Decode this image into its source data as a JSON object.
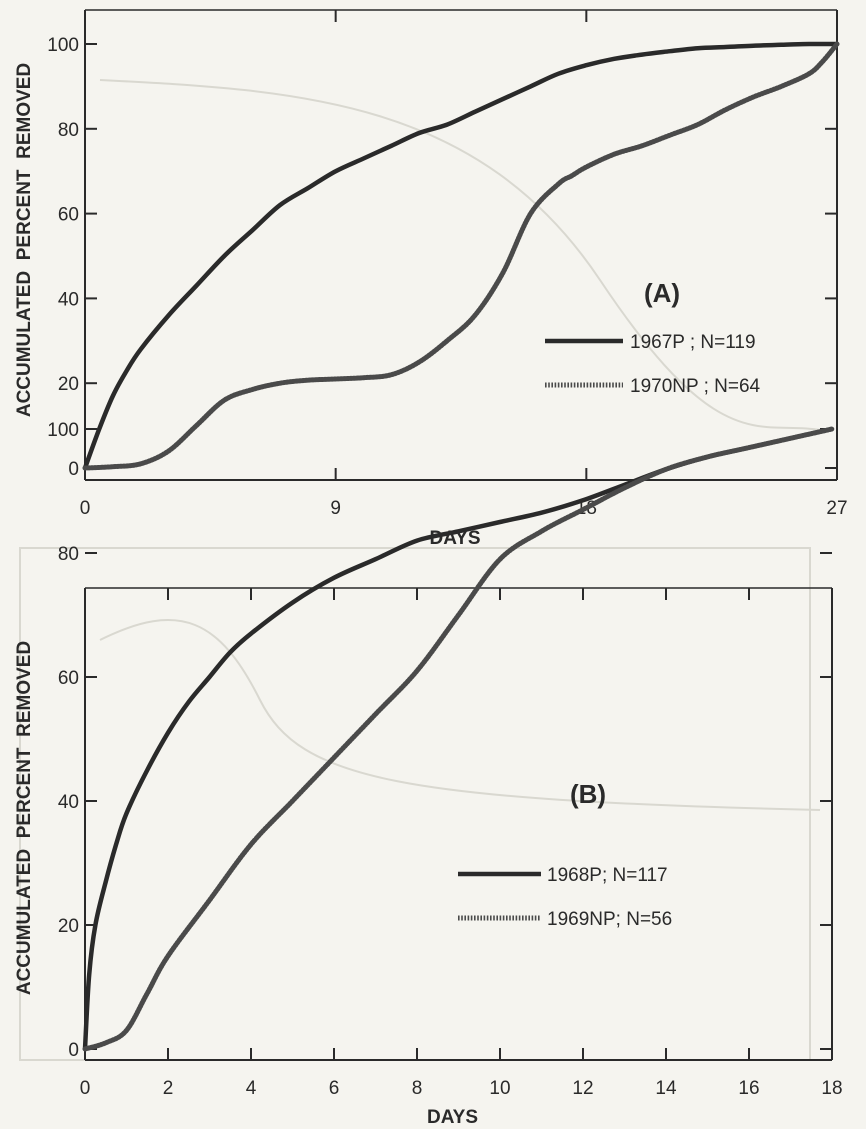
{
  "chart_data": [
    {
      "type": "line",
      "panel_label": "(A)",
      "xlabel": "DAYS",
      "ylabel": "ACCUMULATED  PERCENT  REMOVED",
      "xlim": [
        0,
        27
      ],
      "ylim": [
        0,
        100
      ],
      "x_ticks": [
        0,
        9,
        18,
        27
      ],
      "y_ticks": [
        0,
        20,
        40,
        60,
        80,
        100
      ],
      "legend_position": "center-right",
      "series": [
        {
          "name": "1967P ; N=119",
          "style": "solid",
          "x": [
            0,
            0.5,
            1,
            1.5,
            2,
            3,
            4,
            5,
            6,
            7,
            8,
            9,
            10,
            11,
            12,
            13,
            14,
            15,
            16,
            17,
            18,
            19,
            20,
            21,
            22,
            23,
            24,
            25,
            26,
            27
          ],
          "y": [
            0,
            9,
            17,
            23,
            28,
            36,
            43,
            50,
            56,
            62,
            66,
            70,
            73,
            76,
            79,
            81,
            84,
            87,
            90,
            93,
            95,
            96.5,
            97.5,
            98.3,
            99,
            99.3,
            99.6,
            99.8,
            100,
            100
          ]
        },
        {
          "name": "1970NP ; N=64",
          "style": "dotted",
          "x": [
            0,
            1,
            2,
            3,
            4,
            5,
            6,
            7,
            8,
            9,
            10,
            11,
            12,
            13,
            14,
            15,
            16,
            17,
            17.5,
            18,
            19,
            20,
            21,
            22,
            23,
            24,
            25,
            26,
            26.5,
            27
          ],
          "y": [
            0,
            0.3,
            1,
            4,
            10,
            16,
            18.5,
            20,
            20.7,
            21,
            21.3,
            22,
            25,
            30,
            36,
            46,
            60,
            67,
            69,
            71,
            74,
            76,
            78.5,
            81,
            84.5,
            87.5,
            90,
            93,
            96,
            100
          ]
        }
      ]
    },
    {
      "type": "line",
      "panel_label": "(B)",
      "xlabel": "DAYS",
      "ylabel": "ACCUMULATED  PERCENT  REMOVED",
      "xlim": [
        0,
        18
      ],
      "ylim": [
        0,
        100
      ],
      "x_ticks": [
        0,
        2,
        4,
        6,
        8,
        10,
        12,
        14,
        16,
        18
      ],
      "y_ticks": [
        0,
        20,
        40,
        60,
        80,
        100
      ],
      "legend_position": "center-right",
      "series": [
        {
          "name": "1968P; N=117",
          "style": "solid",
          "x": [
            0,
            0.1,
            0.25,
            0.5,
            0.75,
            1,
            1.5,
            2,
            2.5,
            3,
            3.5,
            4,
            5,
            6,
            7,
            8,
            9,
            10,
            11,
            12,
            13,
            14,
            15,
            16,
            17,
            18
          ],
          "y": [
            0,
            12,
            20,
            27,
            33,
            38,
            45,
            51,
            56,
            60,
            64,
            67,
            72,
            76,
            79,
            82,
            83.5,
            85,
            86.5,
            88.5,
            91,
            93.5,
            95.5,
            97,
            98.5,
            100
          ]
        },
        {
          "name": "1969NP; N=56",
          "style": "dotted",
          "x": [
            0,
            0.5,
            1,
            1.5,
            2,
            3,
            4,
            5,
            6,
            7,
            8,
            9,
            10,
            11,
            12,
            13,
            14,
            15,
            16,
            17,
            18
          ],
          "y": [
            0,
            1,
            3,
            9,
            15,
            24,
            33,
            40,
            47,
            54,
            61,
            70,
            79,
            83.5,
            87,
            90.5,
            93.5,
            95.5,
            97,
            98.5,
            100
          ]
        }
      ]
    }
  ]
}
